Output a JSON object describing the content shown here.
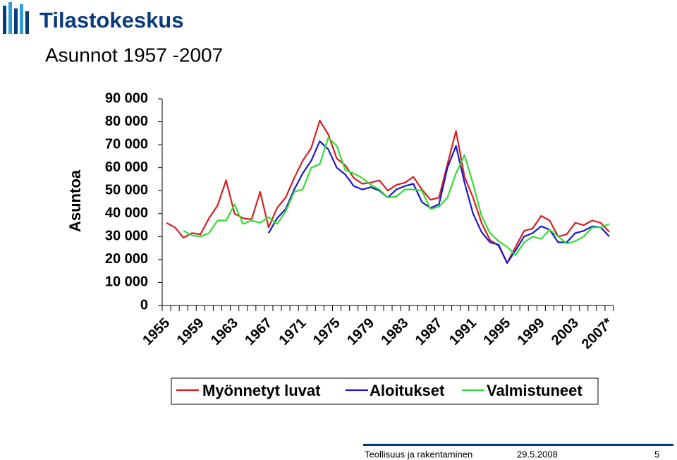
{
  "logo": "Tilastokeskus",
  "chart_data": {
    "type": "line",
    "title": "Asunnot 1957 -2007",
    "y_label": "Asuntoa",
    "categories": [
      "1955",
      null,
      null,
      null,
      "1959",
      null,
      null,
      null,
      "1963",
      null,
      null,
      null,
      "1967",
      null,
      null,
      null,
      "1971",
      null,
      null,
      null,
      "1975",
      null,
      null,
      null,
      "1979",
      null,
      null,
      null,
      "1983",
      null,
      null,
      null,
      "1987",
      null,
      null,
      null,
      "1991",
      null,
      null,
      null,
      "1995",
      null,
      null,
      null,
      "1999",
      null,
      null,
      null,
      "2003",
      null,
      null,
      null,
      "2007*"
    ],
    "series": [
      {
        "name": "Myönnetyt luvat",
        "color": "#d42020",
        "values": [
          36000,
          34000,
          29500,
          31500,
          31000,
          38000,
          43500,
          54500,
          40000,
          38000,
          37500,
          49500,
          34000,
          42500,
          47000,
          55500,
          63000,
          68500,
          80500,
          74500,
          64000,
          61000,
          55500,
          53000,
          53500,
          54500,
          50000,
          52500,
          53500,
          56000,
          50500,
          46000,
          47000,
          61500,
          76000,
          56000,
          47000,
          36000,
          28500,
          26000,
          18500,
          25500,
          32500,
          33500,
          39000,
          37000,
          30000,
          31000,
          36000,
          35000,
          37000,
          36000,
          32000
        ]
      },
      {
        "name": "Aloitukset",
        "color": "#1a1ac8",
        "values": [
          null,
          null,
          null,
          null,
          null,
          null,
          null,
          null,
          null,
          null,
          null,
          null,
          31500,
          38000,
          42000,
          50500,
          57500,
          63000,
          71500,
          68000,
          60000,
          57000,
          52000,
          50500,
          51500,
          50000,
          47000,
          50500,
          52000,
          53000,
          45000,
          42500,
          44000,
          60000,
          69500,
          53500,
          40000,
          32000,
          27500,
          26500,
          18500,
          24000,
          30000,
          31500,
          34500,
          33000,
          27500,
          27500,
          31500,
          32500,
          34500,
          34000,
          30000
        ]
      },
      {
        "name": "Valmistuneet",
        "color": "#33dd33",
        "values": [
          null,
          null,
          32500,
          30500,
          30000,
          31500,
          37000,
          37000,
          44000,
          35500,
          37000,
          36000,
          38500,
          35500,
          41000,
          49500,
          50500,
          60000,
          61500,
          73000,
          69500,
          59000,
          57500,
          55500,
          52500,
          50500,
          47000,
          47500,
          50500,
          50500,
          50000,
          42000,
          43000,
          47000,
          57500,
          65500,
          53000,
          39000,
          31500,
          28000,
          25500,
          22000,
          27500,
          30000,
          29000,
          33000,
          30000,
          27000,
          28000,
          30000,
          34000,
          34000,
          35500
        ]
      }
    ],
    "ylim": [
      0,
      90000
    ],
    "yticks": [
      0,
      {
        "value": 10000,
        "label": "10 000"
      },
      {
        "value": 20000,
        "label": "20 000"
      },
      {
        "value": 30000,
        "label": "30 000"
      },
      {
        "value": 40000,
        "label": "40 000"
      },
      {
        "value": 50000,
        "label": "50 000"
      },
      {
        "value": 60000,
        "label": "60 000"
      },
      {
        "value": 70000,
        "label": "70 000"
      },
      {
        "value": 80000,
        "label": "80 000"
      },
      {
        "value": 90000,
        "label": "90 000"
      }
    ],
    "legend": "bottom"
  },
  "footer": {
    "section": "Teollisuus ja rakentaminen",
    "date": "29.5.2008",
    "page": "5"
  }
}
